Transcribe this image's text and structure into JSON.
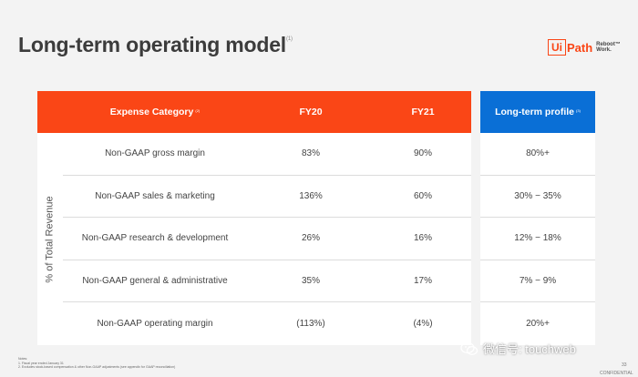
{
  "title": "Long-term operating model",
  "title_mark": "(1)",
  "logo": {
    "box": "Ui",
    "path": "Path",
    "tagline": "Reboot™ Work."
  },
  "table": {
    "headers": {
      "category": "Expense Category",
      "category_mark": "(2)",
      "fy20": "FY20",
      "fy21": "FY21",
      "longterm": "Long-term profile",
      "longterm_mark": "(3)"
    },
    "side_label": "% of Total Revenue",
    "rows": [
      {
        "category": "Non-GAAP gross margin",
        "fy20": "83%",
        "fy21": "90%",
        "longterm": "80%+"
      },
      {
        "category": "Non-GAAP sales & marketing",
        "fy20": "136%",
        "fy21": "60%",
        "longterm": "30% − 35%"
      },
      {
        "category": "Non-GAAP research & development",
        "fy20": "26%",
        "fy21": "16%",
        "longterm": "12% − 18%"
      },
      {
        "category": "Non-GAAP general & administrative",
        "fy20": "35%",
        "fy21": "17%",
        "longterm": "7% − 9%"
      },
      {
        "category": "Non-GAAP operating margin",
        "fy20": "(113%)",
        "fy21": "(4%)",
        "longterm": "20%+"
      }
    ]
  },
  "notes": {
    "heading": "Notes:",
    "line1": "1. Fiscal year ended January 31",
    "line2": "2. Excludes stock-based compensation & other Non-GAAP adjustments (see appendix for GAAP reconciliation)"
  },
  "page_number": "33",
  "confidential": "CONFIDENTIAL",
  "watermark": "微信号: touchweb",
  "colors": {
    "orange": "#fa4616",
    "blue": "#0a6fd6"
  }
}
